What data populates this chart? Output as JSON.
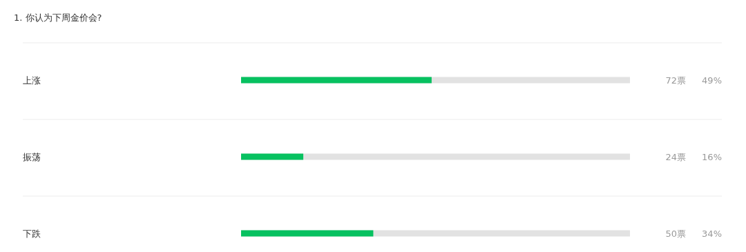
{
  "chart_data": {
    "type": "bar",
    "orientation": "horizontal",
    "title": "1. 你认为下周金价会?",
    "categories": [
      "上涨",
      "振荡",
      "下跌"
    ],
    "values": [
      49,
      16,
      34
    ],
    "value_labels": [
      "49%",
      "16%",
      "34%"
    ],
    "color": "#07c160",
    "xlim": [
      0,
      100
    ],
    "tick_labels": false,
    "grid": false,
    "annotations": [
      "72票",
      "24票",
      "50票"
    ]
  }
}
